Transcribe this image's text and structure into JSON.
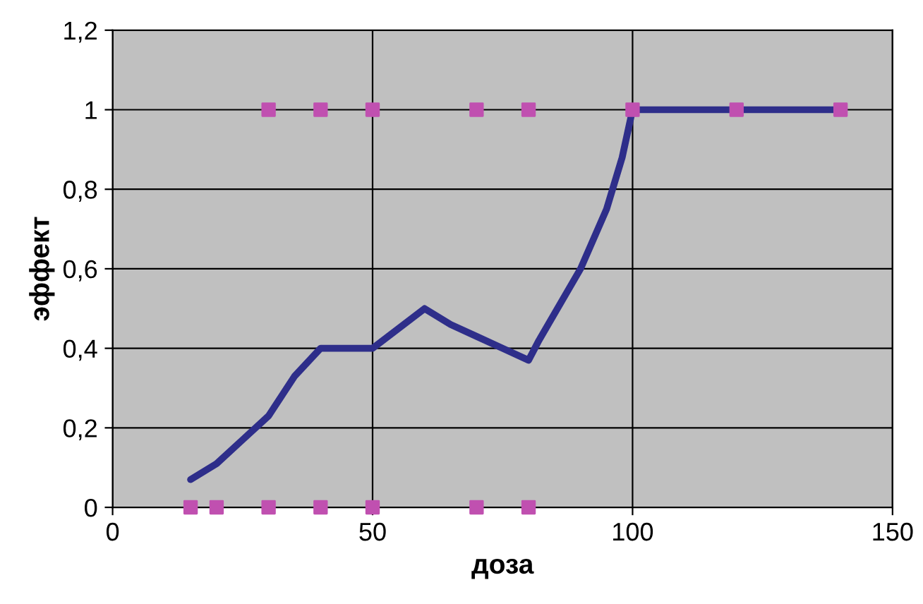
{
  "chart_data": {
    "type": "line",
    "xlabel": "доза",
    "ylabel": "эффект",
    "xlim": [
      0,
      150
    ],
    "xticks": [
      0,
      50,
      100,
      150
    ],
    "ylim": [
      0,
      1.2
    ],
    "yticks": [
      {
        "value": 0,
        "label": "0"
      },
      {
        "value": 0.2,
        "label": "0,2"
      },
      {
        "value": 0.4,
        "label": "0,4"
      },
      {
        "value": 0.6,
        "label": "0,6"
      },
      {
        "value": 0.8,
        "label": "0,8"
      },
      {
        "value": 1,
        "label": "1"
      },
      {
        "value": 1.2,
        "label": "1,2"
      }
    ],
    "grid": true,
    "legend": false,
    "series": [
      {
        "color": "#2e2e8a",
        "marker": "none",
        "line_style": "solid",
        "x": [
          15,
          20,
          25,
          30,
          35,
          40,
          50,
          60,
          65,
          70,
          75,
          80,
          82,
          90,
          95,
          98,
          100,
          140
        ],
        "values": [
          0.07,
          0.11,
          0.17,
          0.23,
          0.33,
          0.4,
          0.4,
          0.5,
          0.46,
          0.43,
          0.4,
          0.37,
          0.42,
          0.6,
          0.75,
          0.88,
          1.0,
          1.0
        ]
      },
      {
        "type": "scatter",
        "color": "#c050b0",
        "marker": "square",
        "x": [
          15,
          20,
          30,
          40,
          50,
          70,
          80,
          30,
          40,
          50,
          70,
          80,
          100,
          120,
          140
        ],
        "values": [
          0,
          0,
          0,
          0,
          0,
          0,
          0,
          1,
          1,
          1,
          1,
          1,
          1,
          1,
          1
        ]
      }
    ]
  }
}
